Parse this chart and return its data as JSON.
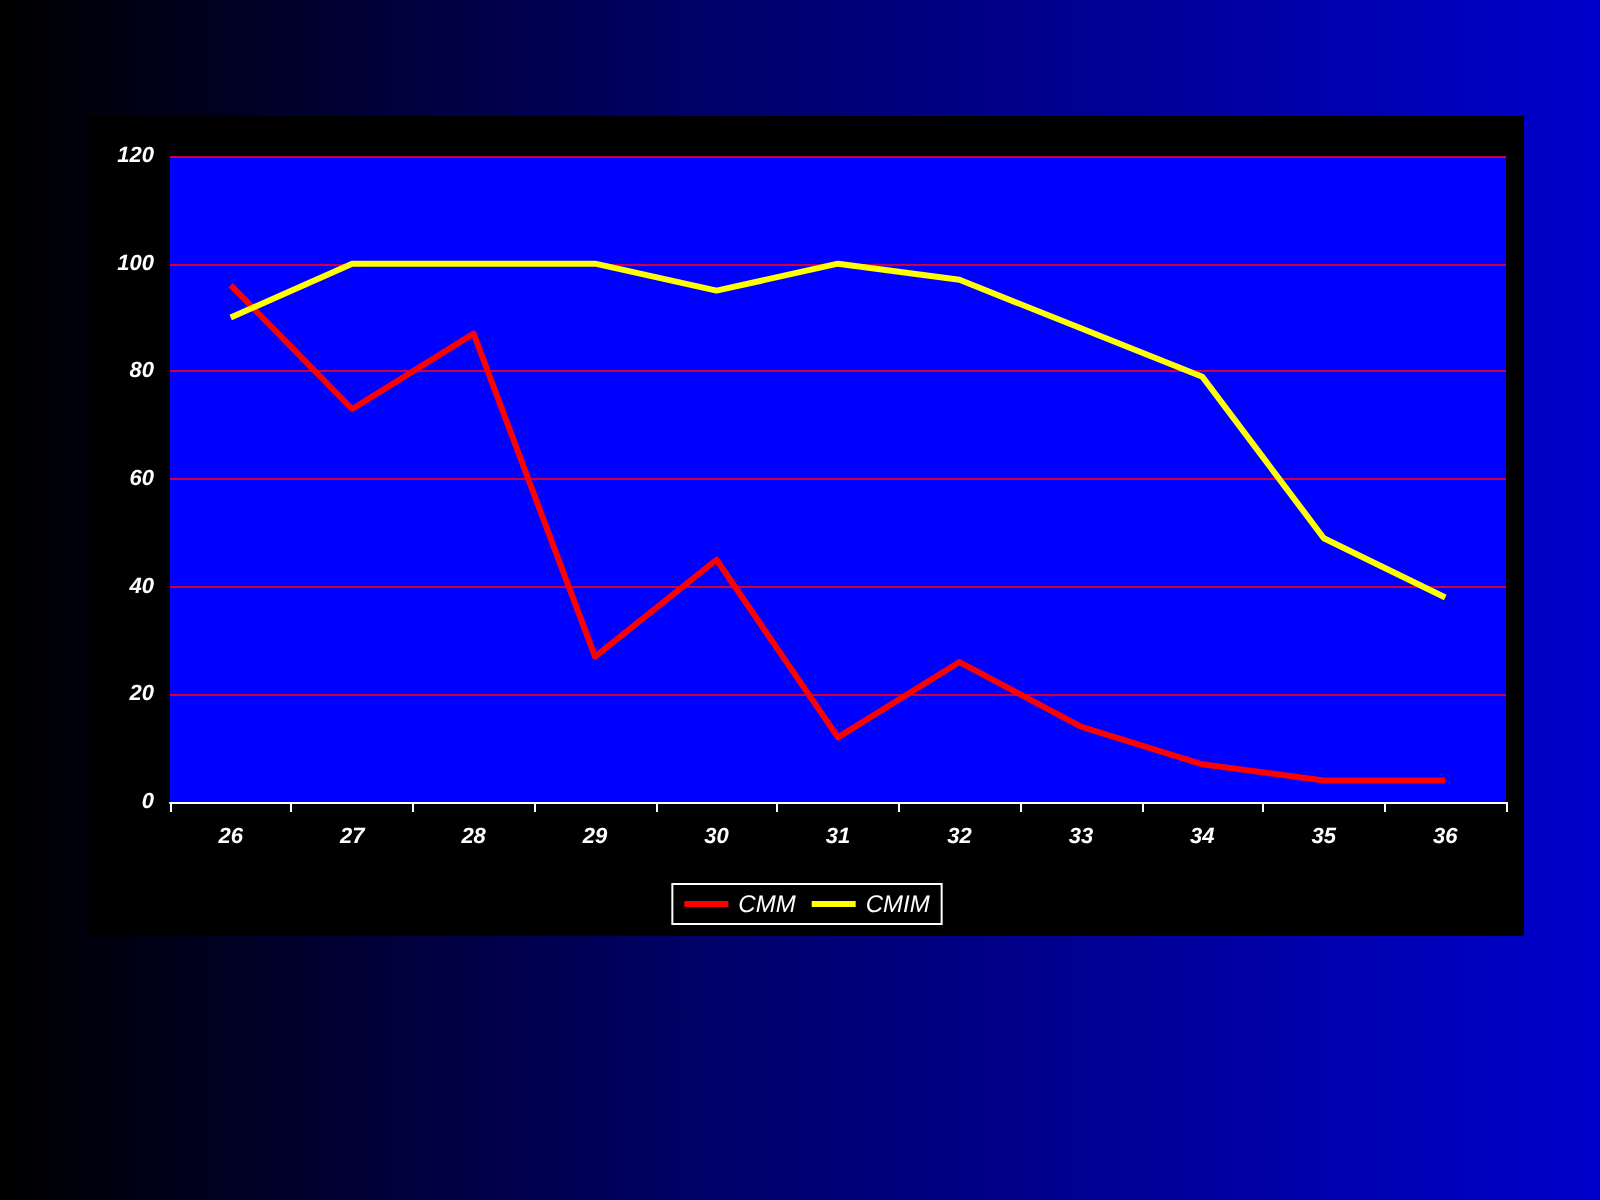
{
  "chart_data": {
    "type": "line",
    "categories": [
      "26",
      "27",
      "28",
      "29",
      "30",
      "31",
      "32",
      "33",
      "34",
      "35",
      "36"
    ],
    "series": [
      {
        "name": "CMM",
        "color": "#ff0000",
        "values": [
          96,
          73,
          87,
          27,
          45,
          12,
          26,
          14,
          7,
          4,
          4
        ]
      },
      {
        "name": "CMIM",
        "color": "#ffff00",
        "values": [
          90,
          100,
          100,
          100,
          95,
          100,
          97,
          88,
          79,
          49,
          38
        ]
      }
    ],
    "ylim": [
      0,
      120
    ],
    "yticks": [
      0,
      20,
      40,
      60,
      80,
      100,
      120
    ],
    "grid": "y",
    "legend": "bottom",
    "marker": "none",
    "line_style": "solid"
  }
}
